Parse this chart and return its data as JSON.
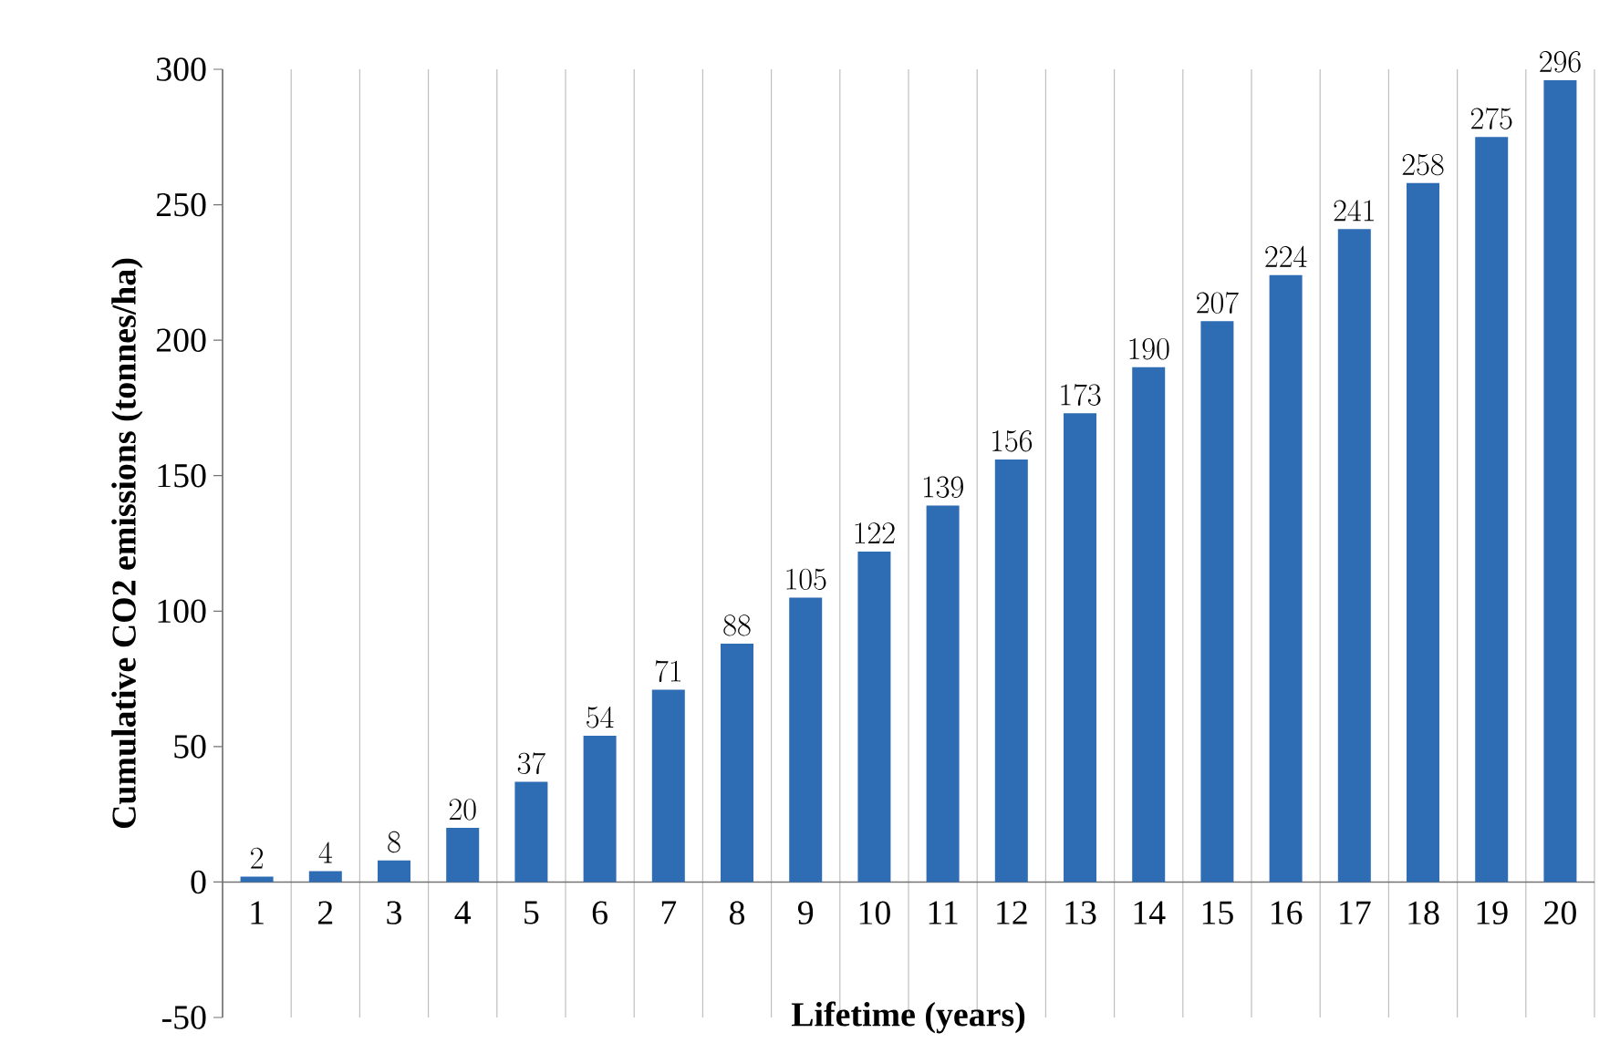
{
  "chart_data": {
    "type": "bar",
    "xlabel": "Lifetime (years)",
    "ylabel": "Cumulative CO2 emissions (tonnes/ha)",
    "categories": [
      "1",
      "2",
      "3",
      "4",
      "5",
      "6",
      "7",
      "8",
      "9",
      "10",
      "11",
      "12",
      "13",
      "14",
      "15",
      "16",
      "17",
      "18",
      "19",
      "20"
    ],
    "values": [
      2,
      4,
      8,
      20,
      37,
      54,
      71,
      88,
      105,
      122,
      139,
      156,
      173,
      190,
      207,
      224,
      241,
      258,
      275,
      296
    ],
    "color": "#2e6db4",
    "ylim": [
      -50,
      300
    ],
    "yticks": [
      -50,
      0,
      50,
      100,
      150,
      200,
      250,
      300
    ],
    "grid": "x",
    "data_labels": true
  }
}
